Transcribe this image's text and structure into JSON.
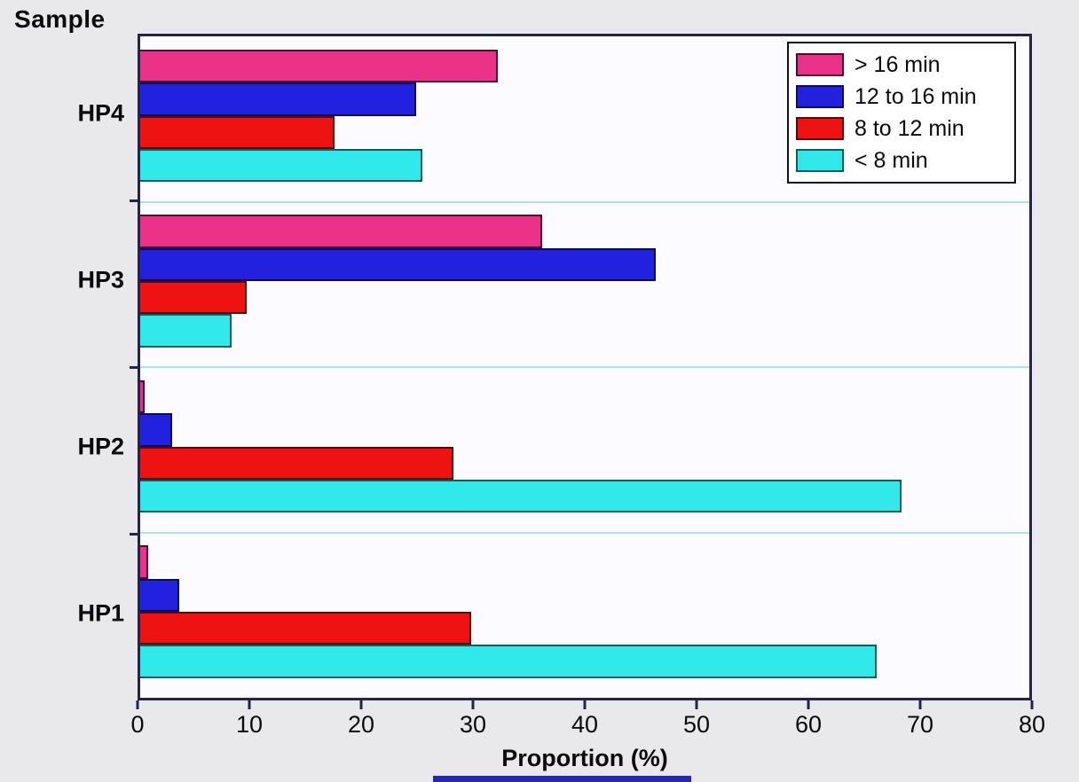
{
  "title": "Sample",
  "xlabel": "Proportion (%)",
  "colors": {
    "frame": "#23234d",
    "gridline": "#a8e4f2",
    "plot_background": "#fcfbff",
    "page_background": "#e9e9ec",
    "bottom_strip": "#2626b8"
  },
  "chart_data": {
    "type": "bar",
    "orientation": "horizontal",
    "title": "Sample",
    "xlabel": "Proportion (%)",
    "ylabel": "Sample",
    "xlim": [
      0,
      80
    ],
    "xticks": [
      0,
      10,
      20,
      30,
      40,
      50,
      60,
      70,
      80
    ],
    "grid": "horizontal separators between category groups",
    "legend_position": "top-right",
    "categories": [
      "HP4",
      "HP3",
      "HP2",
      "HP1"
    ],
    "series": [
      {
        "name": "> 16 min",
        "color": "#ea3288",
        "border": "#4a0d33",
        "values": [
          32.2,
          36.2,
          0.4,
          0.7
        ]
      },
      {
        "name": "12 to 16 min",
        "color": "#2121de",
        "border": "#0c0c5a",
        "values": [
          24.8,
          46.4,
          2.9,
          3.5
        ]
      },
      {
        "name": "8 to 12 min",
        "color": "#ee1212",
        "border": "#550808",
        "values": [
          17.5,
          9.6,
          28.2,
          29.8
        ]
      },
      {
        "name": "< 8 min",
        "color": "#30e8e8",
        "border": "#0a5e5e",
        "values": [
          25.4,
          8.2,
          68.5,
          66.3
        ]
      }
    ]
  }
}
